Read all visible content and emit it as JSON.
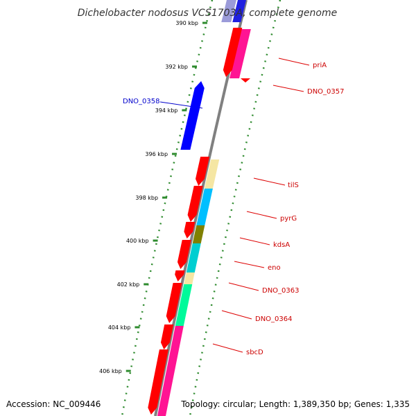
{
  "title": "Dichelobacter nodosus VCS1703A, complete genome",
  "footer": {
    "accession": "Accession: NC_009446",
    "summary": "Topology: circular; Length: 1,389,350 bp; Genes: 1,335"
  },
  "colors": {
    "backbone": "#808080",
    "kbp_tick": "#2e8b2e",
    "label_forward": "#cc0000",
    "label_reverse": "#0000cc",
    "leader_forward": "#dd0000",
    "leader_reverse": "#0000cc"
  },
  "kbp_ticks": [
    "390 kbp",
    "392 kbp",
    "394 kbp",
    "396 kbp",
    "398 kbp",
    "400 kbp",
    "402 kbp",
    "404 kbp",
    "406 kbp"
  ],
  "gene_labels": [
    {
      "name": "priA",
      "strand": "forward"
    },
    {
      "name": "DNO_0357",
      "strand": "forward"
    },
    {
      "name": "DNO_0358",
      "strand": "reverse"
    },
    {
      "name": "tilS",
      "strand": "forward"
    },
    {
      "name": "pyrG",
      "strand": "forward"
    },
    {
      "name": "kdsA",
      "strand": "forward"
    },
    {
      "name": "eno",
      "strand": "forward"
    },
    {
      "name": "DNO_0363",
      "strand": "forward"
    },
    {
      "name": "DNO_0364",
      "strand": "forward"
    },
    {
      "name": "sbcD",
      "strand": "forward"
    }
  ],
  "features": [
    {
      "name": "red CDS",
      "color": "#ff0000"
    },
    {
      "name": "priA",
      "color": "#ff1493"
    },
    {
      "name": "DNO_0358",
      "color": "#0000ff"
    },
    {
      "name": "tilS",
      "color": "#f5e6a3"
    },
    {
      "name": "pyrG",
      "color": "#00bfff"
    },
    {
      "name": "kdsA",
      "color": "#808000"
    },
    {
      "name": "eno",
      "color": "#00ced1"
    },
    {
      "name": "DNO_0363",
      "color": "#f5e6a3"
    },
    {
      "name": "DNO_0364",
      "color": "#00fa9a"
    },
    {
      "name": "sbcD",
      "color": "#ff1493"
    }
  ]
}
